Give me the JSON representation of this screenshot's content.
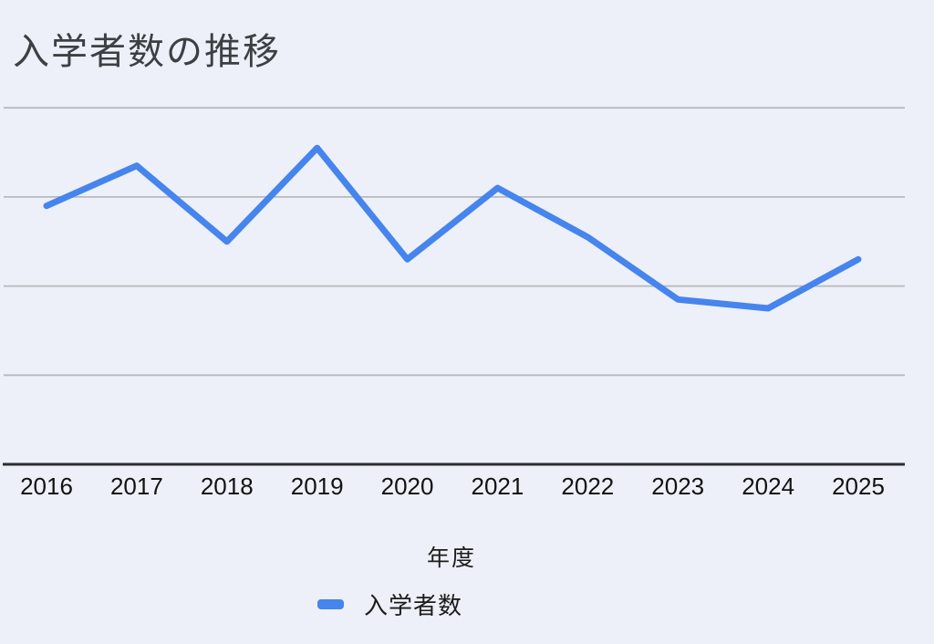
{
  "title": "入学者数の推移",
  "x_axis": {
    "title": "年度"
  },
  "legend": {
    "label": "入学者数"
  },
  "colors": {
    "background": "#edf0f8",
    "series_line": "#4684ee",
    "gridline": "#b7b9bd",
    "axis_line": "#2b2d30",
    "title_text": "#3c4043",
    "label_text": "#121212"
  },
  "chart_data": {
    "type": "line",
    "title": "入学者数の推移",
    "xlabel": "年度",
    "ylabel": "",
    "categories": [
      "2016",
      "2017",
      "2018",
      "2019",
      "2020",
      "2021",
      "2022",
      "2023",
      "2024",
      "2025"
    ],
    "series": [
      {
        "name": "入学者数",
        "values": [
          290,
          335,
          250,
          355,
          230,
          310,
          255,
          185,
          175,
          230
        ]
      }
    ],
    "ylim": [
      0,
      400
    ],
    "y_axis_tick_labels_visible": false,
    "gridline_interval": 100,
    "grid": true,
    "legend_position": "bottom"
  }
}
